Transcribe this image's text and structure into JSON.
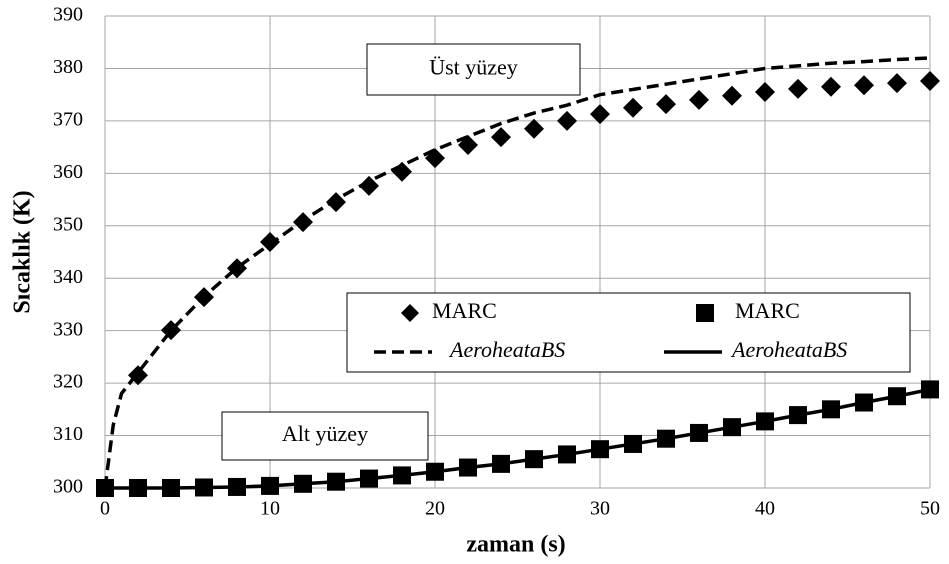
{
  "chart_data": {
    "type": "line",
    "xlabel": "zaman (s)",
    "ylabel": "Sıcaklık (K)",
    "xlim": [
      0,
      50
    ],
    "xticks": [
      0,
      10,
      20,
      30,
      40,
      50
    ],
    "ylim": [
      300,
      390
    ],
    "yticks": [
      300,
      310,
      320,
      330,
      340,
      350,
      360,
      370,
      380,
      390
    ],
    "grid": true,
    "annotations": [
      "Üst yüzey",
      "Alt yüzey"
    ],
    "series": [
      {
        "name": "MARC",
        "color": "#000000",
        "style": "diamond",
        "x": [
          2,
          4,
          6,
          8,
          10,
          12,
          14,
          16,
          18,
          20,
          22,
          24,
          26,
          28,
          30,
          32,
          34,
          36,
          38,
          40,
          42,
          44,
          46,
          48,
          50
        ],
        "values": [
          321.5,
          330.1,
          336.4,
          341.9,
          346.9,
          350.7,
          354.5,
          357.6,
          360.3,
          362.9,
          365.4,
          366.9,
          368.5,
          370,
          371.3,
          372.5,
          373.2,
          374,
          374.8,
          375.5,
          376.1,
          376.5,
          376.8,
          377.2,
          377.6
        ]
      },
      {
        "name": "MARC",
        "color": "#000000",
        "style": "square",
        "x": [
          0,
          2,
          4,
          6,
          8,
          10,
          12,
          14,
          16,
          18,
          20,
          22,
          24,
          26,
          28,
          30,
          32,
          34,
          36,
          38,
          40,
          42,
          44,
          46,
          48,
          50
        ],
        "values": [
          300,
          300,
          300,
          300.1,
          300.2,
          300.4,
          300.8,
          301.2,
          301.8,
          302.4,
          303.1,
          303.9,
          304.6,
          305.5,
          306.4,
          307.4,
          308.4,
          309.4,
          310.5,
          311.6,
          312.7,
          313.9,
          315,
          316.3,
          317.5,
          318.8
        ]
      },
      {
        "name": "AeroheataBS",
        "color": "#000000",
        "style": "dashed",
        "x": [
          0,
          0.5,
          1,
          2,
          4,
          6,
          8,
          10,
          12,
          14,
          16,
          18,
          20,
          22,
          24,
          26,
          28,
          30,
          32,
          34,
          36,
          38,
          40,
          42,
          44,
          46,
          48,
          50
        ],
        "values": [
          300,
          312,
          318,
          322,
          330,
          336.5,
          342,
          346.5,
          351,
          355,
          358.5,
          361.5,
          364.5,
          367,
          369.5,
          371.5,
          373,
          375,
          376,
          377,
          378,
          379,
          380,
          380.5,
          381,
          381.3,
          381.7,
          382
        ]
      },
      {
        "name": "AeroheataBS",
        "color": "#000000",
        "style": "solid",
        "x": [
          0,
          2,
          4,
          6,
          8,
          10,
          12,
          14,
          16,
          18,
          20,
          22,
          24,
          26,
          28,
          30,
          32,
          34,
          36,
          38,
          40,
          42,
          44,
          46,
          48,
          50
        ],
        "values": [
          300,
          300,
          300,
          300.1,
          300.2,
          300.4,
          300.8,
          301.2,
          301.8,
          302.4,
          303.1,
          303.9,
          304.6,
          305.5,
          306.4,
          307.4,
          308.4,
          309.4,
          310.5,
          311.6,
          312.7,
          313.9,
          315,
          316.3,
          317.5,
          318.8
        ]
      }
    ]
  }
}
